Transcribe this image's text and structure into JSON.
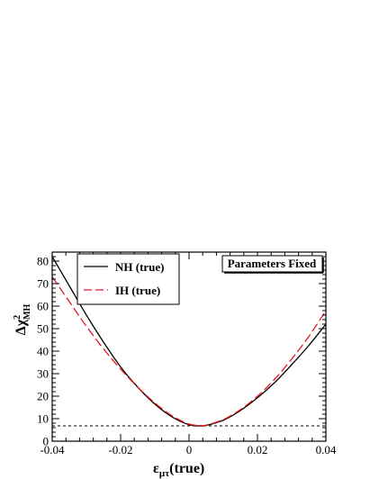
{
  "chart_data": {
    "type": "line",
    "xlabel": "εμτ(true)",
    "xlabel_main": "ε",
    "xlabel_sub": "μτ",
    "xlabel_tail": "(true)",
    "ylabel_main": "Δχ",
    "ylabel_sup": "2",
    "ylabel_sub": "MH",
    "xlim": [
      -0.04,
      0.04
    ],
    "ylim": [
      0,
      84
    ],
    "xticks": [
      -0.04,
      -0.02,
      0,
      0.02,
      0.04
    ],
    "xtick_labels": [
      "-0.04",
      "-0.02",
      "0",
      "0.02",
      "0.04"
    ],
    "yticks": [
      0,
      10,
      20,
      30,
      40,
      50,
      60,
      70,
      80
    ],
    "ytick_labels": [
      "0",
      "10",
      "20",
      "30",
      "40",
      "50",
      "60",
      "70",
      "80"
    ],
    "annotation": "Parameters Fixed",
    "reference_line": {
      "y": 6.8,
      "style": "dotted"
    },
    "series": [
      {
        "name": "NH (true)",
        "color": "#000000",
        "dash": "solid",
        "x": [
          -0.04,
          -0.035,
          -0.03,
          -0.025,
          -0.02,
          -0.015,
          -0.01,
          -0.005,
          0,
          0.0035,
          0.005,
          0.01,
          0.015,
          0.02,
          0.025,
          0.03,
          0.035,
          0.04
        ],
        "y": [
          82,
          69,
          56,
          44,
          33,
          24,
          16.5,
          10.8,
          7.3,
          6.8,
          7.0,
          9.3,
          13.6,
          19.3,
          26,
          34,
          42.5,
          52
        ]
      },
      {
        "name": "IH (true)",
        "color": "#e8141c",
        "dash": "dashed",
        "x": [
          -0.04,
          -0.035,
          -0.03,
          -0.025,
          -0.02,
          -0.015,
          -0.01,
          -0.005,
          0,
          0.0035,
          0.005,
          0.01,
          0.015,
          0.02,
          0.025,
          0.03,
          0.035,
          0.04
        ],
        "y": [
          73,
          62,
          51,
          41,
          32,
          24,
          17,
          11.3,
          7.6,
          7.0,
          7.1,
          9.6,
          14,
          20,
          27.5,
          36.5,
          46.5,
          58
        ]
      }
    ]
  }
}
